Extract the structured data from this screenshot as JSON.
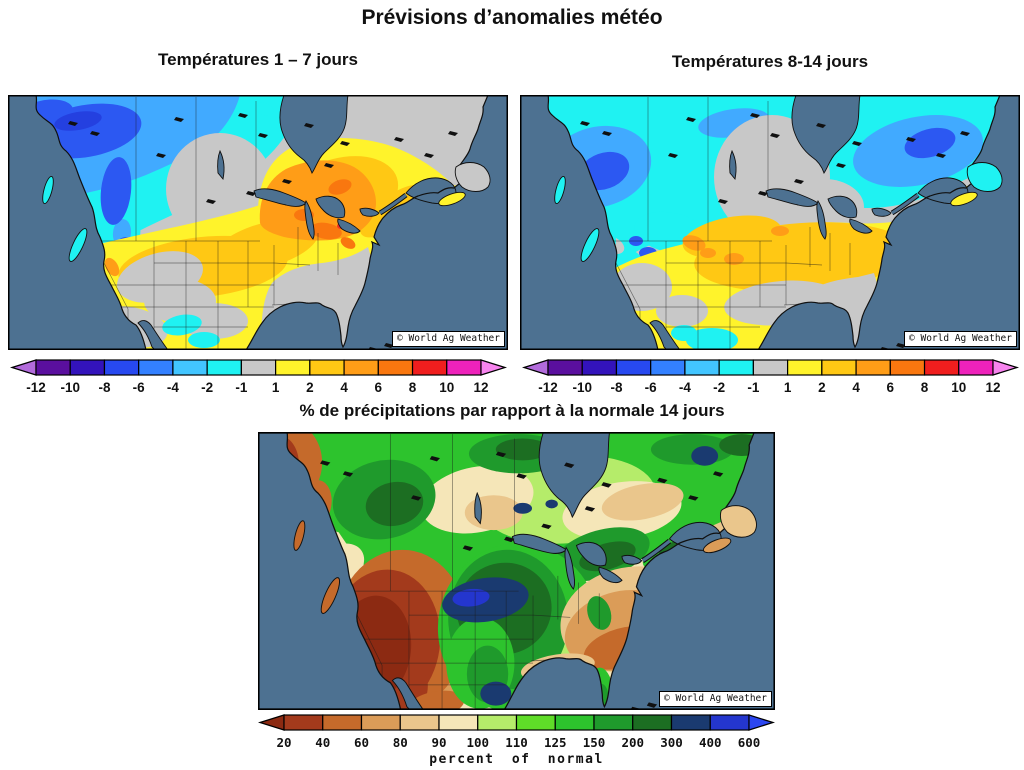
{
  "title": "Prévisions d’anomalies météo",
  "maps": {
    "temp_1_7": {
      "title": "Températures 1 – 7 jours",
      "watermark": "© World Ag Weather"
    },
    "temp_8_14": {
      "title": "Températures 8-14 jours",
      "watermark": "© World Ag Weather"
    },
    "precip": {
      "title": "% de précipitations par rapport à la normale 14 jours",
      "watermark": "© World Ag Weather"
    }
  },
  "temp_scale": {
    "tick_labels": [
      "-12",
      "-10",
      "-8",
      "-6",
      "-4",
      "-2",
      "-1",
      "1",
      "2",
      "4",
      "6",
      "8",
      "10",
      "12"
    ],
    "segment_colors": [
      "#5a0f9e",
      "#3313bb",
      "#2749f0",
      "#3380ff",
      "#42c5ff",
      "#1ff2f2",
      "#c8c8c8",
      "#fff32b",
      "#ffc814",
      "#ff9d17",
      "#f9770f",
      "#f01e1e",
      "#ee22bb"
    ],
    "arrow_left_color": "#b26bdb",
    "arrow_right_color": "#f784ee"
  },
  "precip_scale": {
    "tick_labels": [
      "20",
      "40",
      "60",
      "80",
      "90",
      "100",
      "110",
      "125",
      "150",
      "200",
      "300",
      "400",
      "600"
    ],
    "segment_colors": [
      "#a33a1c",
      "#c56a2b",
      "#db9c58",
      "#eac68c",
      "#f5e6b8",
      "#b5ec6a",
      "#5fdc28",
      "#2dc32d",
      "#1f9a2c",
      "#1c6e22",
      "#1a3a70",
      "#2436ce"
    ],
    "arrow_left_color": "#8c2a12",
    "arrow_right_color": "#2b46f0",
    "caption": "percent of normal"
  },
  "chart_data": [
    {
      "type": "heatmap",
      "title": "Températures 1 – 7 jours",
      "legend_boundaries": [
        -12,
        -10,
        -8,
        -6,
        -4,
        -2,
        -1,
        1,
        2,
        4,
        6,
        8,
        10,
        12
      ],
      "region": "North America",
      "watermark": "© World Ag Weather"
    },
    {
      "type": "heatmap",
      "title": "Températures 8-14 jours",
      "legend_boundaries": [
        -12,
        -10,
        -8,
        -6,
        -4,
        -2,
        -1,
        1,
        2,
        4,
        6,
        8,
        10,
        12
      ],
      "region": "North America",
      "watermark": "© World Ag Weather"
    },
    {
      "type": "heatmap",
      "title": "% de précipitations par rapport à la normale 14 jours",
      "legend_boundaries": [
        20,
        40,
        60,
        80,
        90,
        100,
        110,
        125,
        150,
        200,
        300,
        400,
        600
      ],
      "legend_caption": "percent of normal",
      "region": "North America",
      "watermark": "© World Ag Weather"
    }
  ]
}
